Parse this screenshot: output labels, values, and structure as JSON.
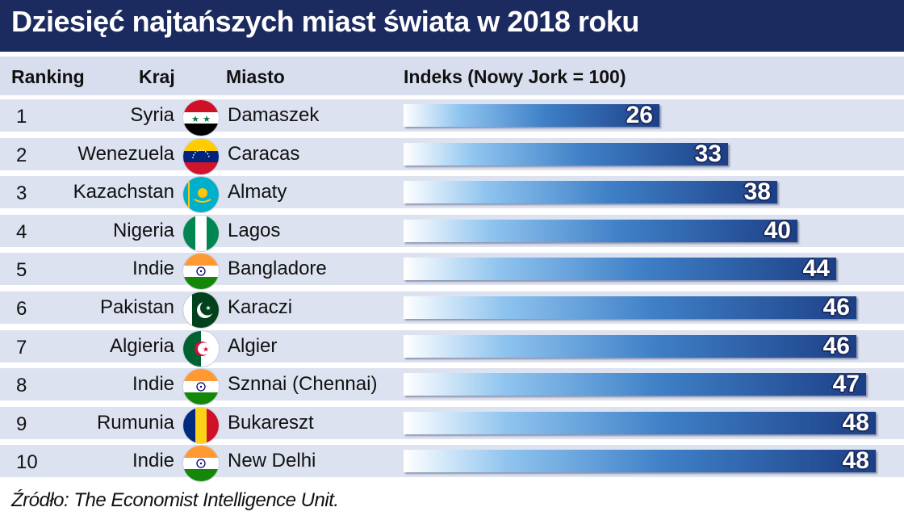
{
  "title": "Dziesięć najtańszych miast świata w 2018 roku",
  "headers": {
    "ranking": "Ranking",
    "kraj": "Kraj",
    "miasto": "Miasto",
    "indeks": "Indeks (Nowy Jork = 100)"
  },
  "source": "Źródło: The Economist Intelligence Unit.",
  "colors": {
    "title_bg": "#1b2a5f",
    "header_bg": "#d9deef",
    "row_bg": "#dde2f0",
    "bar_dark": "#1c3f86",
    "bar_light": "#8fc4ef"
  },
  "chart_data": {
    "type": "bar",
    "orientation": "horizontal",
    "title": "Dziesięć najtańszych miast świata w 2018 roku",
    "xlabel": "Indeks (Nowy Jork = 100)",
    "ylim": [
      0,
      100
    ],
    "rows": [
      {
        "rank": "1",
        "country": "Syria",
        "city": "Damaszek",
        "value": 26,
        "label": "26",
        "flag": "syria-flag-icon"
      },
      {
        "rank": "2",
        "country": "Wenezuela",
        "city": "Caracas",
        "value": 33,
        "label": "33",
        "flag": "venezuela-flag-icon"
      },
      {
        "rank": "3",
        "country": "Kazachstan",
        "city": "Almaty",
        "value": 38,
        "label": "38",
        "flag": "kazakhstan-flag-icon"
      },
      {
        "rank": "4",
        "country": "Nigeria",
        "city": "Lagos",
        "value": 40,
        "label": "40",
        "flag": "nigeria-flag-icon"
      },
      {
        "rank": "5",
        "country": "Indie",
        "city": "Bangladore",
        "value": 44,
        "label": "44",
        "flag": "india-flag-icon"
      },
      {
        "rank": "6",
        "country": "Pakistan",
        "city": "Karaczi",
        "value": 46,
        "label": "46",
        "flag": "pakistan-flag-icon"
      },
      {
        "rank": "7",
        "country": "Algieria",
        "city": "Algier",
        "value": 46,
        "label": "46",
        "flag": "algeria-flag-icon"
      },
      {
        "rank": "8",
        "country": "Indie",
        "city": "Sznnai (Chennai)",
        "value": 47,
        "label": "47",
        "flag": "india-flag-icon"
      },
      {
        "rank": "9",
        "country": "Rumunia",
        "city": "Bukareszt",
        "value": 48,
        "label": "48",
        "flag": "romania-flag-icon"
      },
      {
        "rank": "10",
        "country": "Indie",
        "city": "New Delhi",
        "value": 48,
        "label": "48",
        "flag": "india-flag-icon"
      }
    ]
  }
}
